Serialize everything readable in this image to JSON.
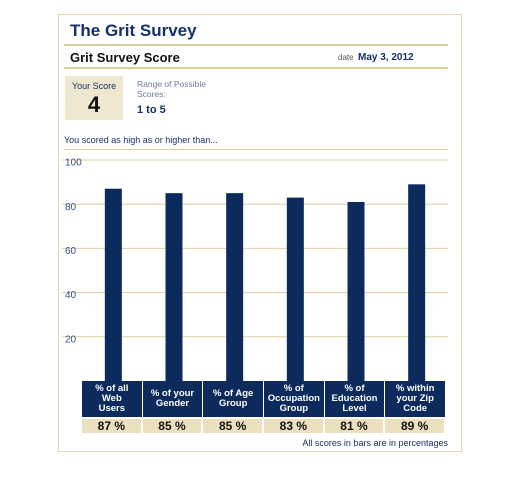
{
  "header": {
    "title": "The Grit Survey",
    "subtitle": "Grit Survey Score",
    "date_label": "date",
    "date": "May 3, 2012"
  },
  "score": {
    "label": "Your Score",
    "value": "4",
    "range_label": "Range of Possible Scores:",
    "range": "1 to 5"
  },
  "intro": "You scored as high as or higher than...",
  "chart_data": {
    "type": "bar",
    "categories": [
      "% of all Web Users",
      "% of your Gender",
      "% of Age Group",
      "% of Occupation Group",
      "% of Education Level",
      "% within your Zip Code"
    ],
    "values": [
      87,
      85,
      85,
      83,
      81,
      89
    ],
    "value_labels": [
      "87 %",
      "85 %",
      "85 %",
      "83 %",
      "81 %",
      "89 %"
    ],
    "color": "#0d2a5c",
    "ylim": [
      0,
      100
    ],
    "yticks": [
      20,
      40,
      60,
      80,
      100
    ],
    "grid": true
  },
  "footnote": "All scores in bars are in percentages"
}
